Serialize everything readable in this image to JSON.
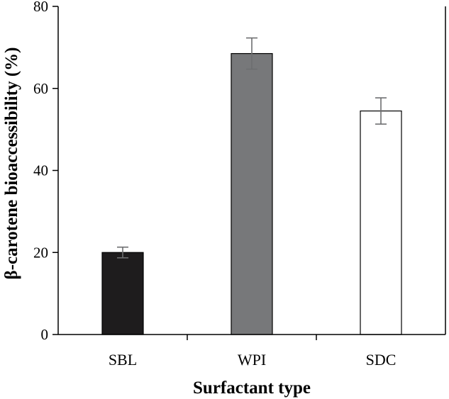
{
  "chart_data": {
    "type": "bar",
    "title": "",
    "xlabel": "Surfactant type",
    "ylabel": "β-carotene bioaccessibility (%)",
    "ylim": [
      0,
      80
    ],
    "yticks": [
      0,
      20,
      40,
      60,
      80
    ],
    "categories": [
      "SBL",
      "WPI",
      "SDC"
    ],
    "values": [
      20.0,
      68.5,
      54.5
    ],
    "errors": [
      1.3,
      3.8,
      3.2
    ],
    "bar_colors": [
      "#1e1c1d",
      "#77787a",
      "#ffffff"
    ],
    "bar_edge_color": "#000000",
    "error_bar_color": "#6d6e70",
    "grid": false,
    "legend": "none"
  }
}
